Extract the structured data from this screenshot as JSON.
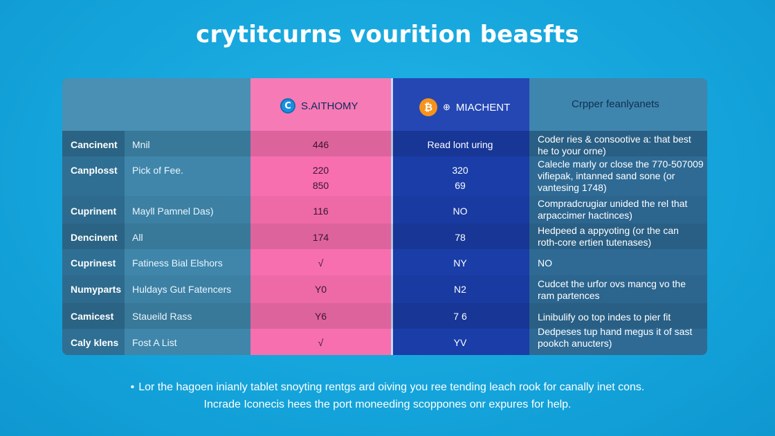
{
  "title": "crytitcurns vourition beasfts",
  "header": {
    "col_c_label": "S.AITHOMY",
    "col_c_icon": "C",
    "col_d_label": "MIACHENT",
    "col_d_icon": "₿",
    "col_d_icon2": "⊕",
    "col_e_label": "Crpper feanlyanets"
  },
  "colors": {
    "background": "#14a4db",
    "pink_column": "#f76fae",
    "blue_column": "#1a3da8",
    "bitcoin_orange": "#f7931a"
  },
  "rows": [
    {
      "cat": "Cancinent",
      "sub": "Mnil",
      "c": "446",
      "d": "Read lont uring",
      "e": [
        "Coder ries & consootive a: that best",
        "he to your orne)"
      ]
    },
    {
      "cat": "Canplosst",
      "sub": "Pick of Fee.",
      "c": "220",
      "c2": "850",
      "d": "320",
      "d2": "69",
      "e": [
        "Calecle marly or close the 770-507009",
        "vifiepak, intanned sand sone (or",
        "vantesing 1748)"
      ]
    },
    {
      "cat": "Cuprinent",
      "sub": "Mayll Pamnel Das)",
      "c": "116",
      "d": "NO",
      "e": [
        "Compradcrugiar unided the rel that",
        "arpaccimer hactinces)"
      ]
    },
    {
      "cat": "Dencinent",
      "sub": "All",
      "c": "174",
      "d": "78",
      "e": [
        "Hedpeed a appyoting (or the can",
        "roth-core ertien tutenases)"
      ]
    },
    {
      "cat": "Cuprinest",
      "sub": "Fatiness Bial Elshors",
      "c": "√",
      "d": "NY",
      "e": [
        "NO"
      ]
    },
    {
      "cat": "Numyparts",
      "sub": "Huldays Gut Fatencers",
      "c": "Y0",
      "d": "N2",
      "e": [
        "Cudcet the urfor ovs mancg vo the",
        "ram partences"
      ]
    },
    {
      "cat": "Camicest",
      "sub": "Staueild Rass",
      "c": "Y6",
      "d": "7 6",
      "e": [
        "Linibulify oo top indes to pier fit"
      ]
    },
    {
      "cat": "Caly klens",
      "sub": "Fost A List",
      "c": "√",
      "d": "YV",
      "e": [
        "Dedpeses tup hand megus it of sast",
        "pookch anucters)"
      ]
    }
  ],
  "footer": {
    "bullet": "•",
    "line1": "Lor the hagoen inianly tablet snoyting rentgs ard oiving you ree tending leach rook for canally inet cons.",
    "line2": "Incrade Iconecis hees the port moneeding scoppones onr expures for help."
  }
}
